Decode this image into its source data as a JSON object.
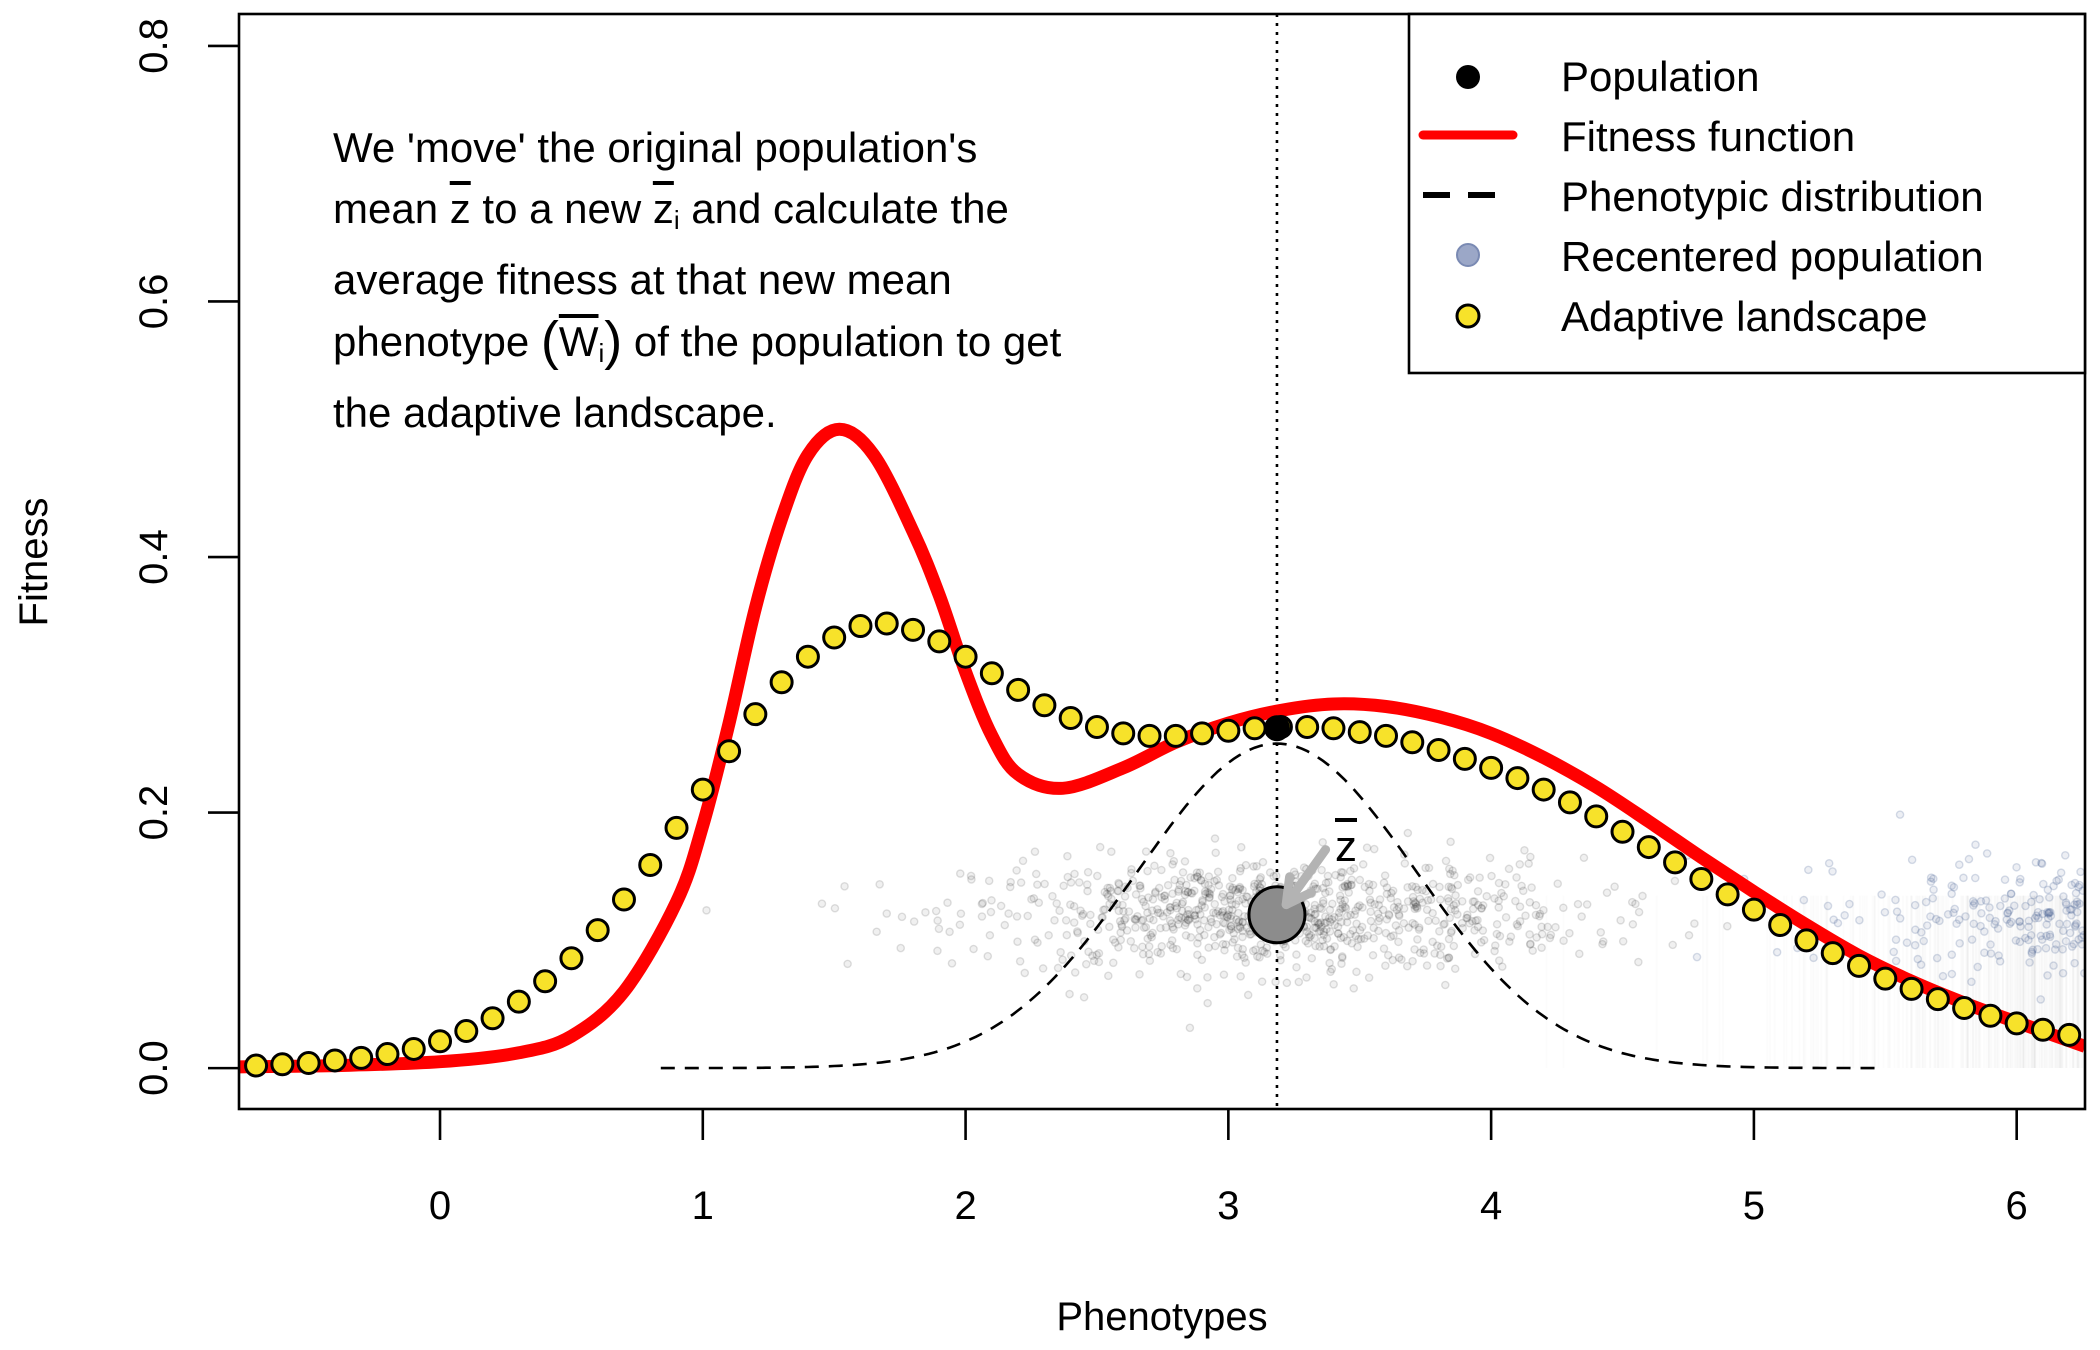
{
  "chart_data": {
    "type": "line",
    "title": "",
    "xlabel": "Phenotypes",
    "ylabel": "Fitness",
    "xlim": [
      -0.765,
      6.26
    ],
    "ylim": [
      -0.032,
      0.825
    ],
    "x_ticks": [
      0,
      1,
      2,
      3,
      4,
      5,
      6
    ],
    "x_tick_labels": [
      "0",
      "1",
      "2",
      "3",
      "4",
      "5",
      "6"
    ],
    "y_ticks": [
      0.0,
      0.2,
      0.4,
      0.6,
      0.8
    ],
    "y_tick_labels": [
      "0.0",
      "0.2",
      "0.4",
      "0.6",
      "0.8"
    ],
    "grid": false,
    "legend_position": "top-right",
    "legend": [
      {
        "label": "Population",
        "symbol": "filled-circle",
        "color": "#000000"
      },
      {
        "label": "Fitness function",
        "symbol": "line",
        "color": "#ff0000"
      },
      {
        "label": "Phenotypic distribution",
        "symbol": "dashed-line",
        "color": "#000000"
      },
      {
        "label": "Recentered population",
        "symbol": "circle",
        "color": "#8f9dbf"
      },
      {
        "label": "Adaptive landscape",
        "symbol": "circle-outlined",
        "color": "#f7e22a"
      }
    ],
    "series": [
      {
        "name": "Fitness function",
        "kind": "curve",
        "color": "#ff0000",
        "x": [
          -0.765,
          -0.4,
          0,
          0.3,
          0.5,
          0.7,
          0.9,
          1.0,
          1.1,
          1.2,
          1.3,
          1.4,
          1.52,
          1.65,
          1.8,
          1.9,
          2.0,
          2.1,
          2.2,
          2.37,
          2.6,
          2.8,
          3.0,
          3.2,
          3.4,
          3.6,
          3.8,
          4.0,
          4.2,
          4.4,
          4.6,
          4.8,
          5.0,
          5.2,
          5.4,
          5.6,
          5.8,
          6.0,
          6.26
        ],
        "y": [
          0.001,
          0.002,
          0.005,
          0.012,
          0.025,
          0.06,
          0.13,
          0.19,
          0.27,
          0.36,
          0.43,
          0.48,
          0.5,
          0.48,
          0.42,
          0.37,
          0.31,
          0.26,
          0.23,
          0.219,
          0.235,
          0.255,
          0.27,
          0.28,
          0.285,
          0.283,
          0.275,
          0.262,
          0.243,
          0.22,
          0.193,
          0.165,
          0.138,
          0.112,
          0.088,
          0.068,
          0.051,
          0.036,
          0.017
        ]
      },
      {
        "name": "Adaptive landscape",
        "kind": "points",
        "color": "#f7e22a",
        "x_start": -0.7,
        "x_step": 0.1,
        "y": [
          0.002,
          0.003,
          0.004,
          0.006,
          0.008,
          0.011,
          0.015,
          0.021,
          0.029,
          0.039,
          0.052,
          0.068,
          0.086,
          0.108,
          0.132,
          0.159,
          0.188,
          0.218,
          0.248,
          0.277,
          0.302,
          0.322,
          0.337,
          0.346,
          0.348,
          0.343,
          0.334,
          0.322,
          0.309,
          0.296,
          0.284,
          0.274,
          0.267,
          0.262,
          0.26,
          0.26,
          0.262,
          0.264,
          0.266,
          0.267,
          0.267,
          0.266,
          0.263,
          0.26,
          0.255,
          0.249,
          0.242,
          0.235,
          0.227,
          0.218,
          0.208,
          0.197,
          0.185,
          0.173,
          0.161,
          0.148,
          0.136,
          0.124,
          0.112,
          0.1,
          0.09,
          0.08,
          0.07,
          0.062,
          0.054,
          0.047,
          0.041,
          0.035,
          0.03,
          0.026
        ]
      },
      {
        "name": "Phenotypic distribution",
        "kind": "gaussian-curve",
        "color": "#000000",
        "mean": 3.185,
        "sd": 0.53,
        "peak": 0.254,
        "x_range": [
          0.84,
          5.47
        ]
      },
      {
        "name": "Population",
        "kind": "jitter-cloud",
        "color": "#000000",
        "mean": 3.185,
        "sd": 0.55,
        "count": 900,
        "y_center": 0.12,
        "y_jitter": 0.022
      },
      {
        "name": "Recentered population",
        "kind": "jitter-cloud",
        "color": "#4a6298",
        "mean": 6.7,
        "sd": 0.55,
        "count": 900,
        "y_center": 0.12,
        "y_jitter": 0.022
      }
    ],
    "annotations": {
      "mean_line_x": 3.185,
      "mean_point": {
        "x": 3.185,
        "y": 0.266
      },
      "mean_marker": {
        "x": 3.185,
        "y": 0.12
      },
      "mean_label": "z",
      "arrow": {
        "from": [
          3.37,
          0.171
        ],
        "to": [
          3.22,
          0.128
        ]
      }
    }
  },
  "annotation_text": {
    "line1": "We 'move' the original population's",
    "line2_a": "mean ",
    "line2_z": "z",
    "line2_b": " to a new ",
    "line2_zi": "z",
    "line2_sub": "i",
    "line2_c": " and calculate the",
    "line3": "average fitness at that new mean",
    "line4_a": "phenotype ",
    "line4_open": "(",
    "line4_w": "W",
    "line4_sub": "i",
    "line4_close": ")",
    "line4_b": " of the population to get",
    "line5": "the adaptive landscape."
  }
}
